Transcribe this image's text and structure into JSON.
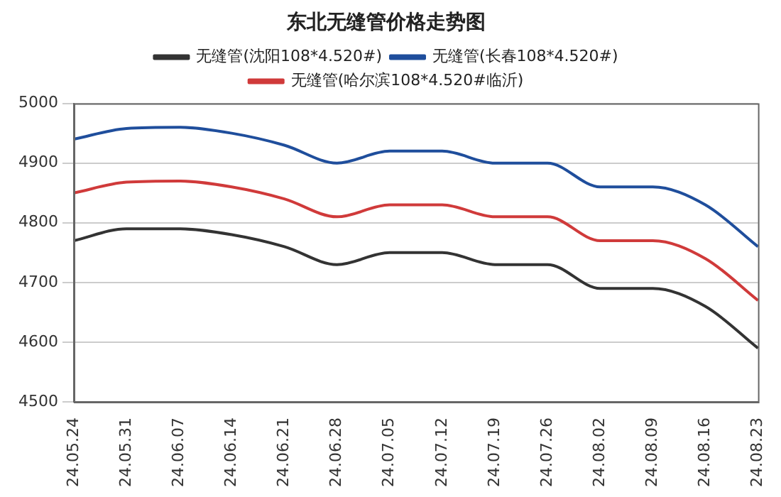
{
  "chart_data": {
    "type": "line",
    "title": "东北无缝管价格走势图",
    "categories": [
      "24.05.24",
      "24.05.31",
      "24.06.07",
      "24.06.14",
      "24.06.21",
      "24.06.28",
      "24.07.05",
      "24.07.12",
      "24.07.19",
      "24.07.26",
      "24.08.02",
      "24.08.09",
      "24.08.16",
      "24.08.23"
    ],
    "series": [
      {
        "name": "无缝管(沈阳108*4.520#)",
        "color": "#333333",
        "values": [
          4770,
          4790,
          4790,
          4780,
          4760,
          4730,
          4750,
          4750,
          4730,
          4730,
          4690,
          4690,
          4660,
          4590
        ]
      },
      {
        "name": "无缝管(长春108*4.520#)",
        "color": "#1f4e9c",
        "values": [
          4940,
          4958,
          4960,
          4950,
          4930,
          4900,
          4920,
          4920,
          4900,
          4900,
          4860,
          4860,
          4830,
          4760
        ]
      },
      {
        "name": "无缝管(哈尔滨108*4.520#临沂)",
        "color": "#d03a3a",
        "values": [
          4850,
          4868,
          4870,
          4860,
          4840,
          4810,
          4830,
          4830,
          4810,
          4810,
          4770,
          4770,
          4740,
          4670
        ]
      }
    ],
    "ylim": [
      4500,
      5000
    ],
    "yticks": [
      4500,
      4600,
      4700,
      4800,
      4900,
      5000
    ],
    "grid": "y",
    "legend": "top",
    "marker": "none",
    "line_style": "solid"
  }
}
